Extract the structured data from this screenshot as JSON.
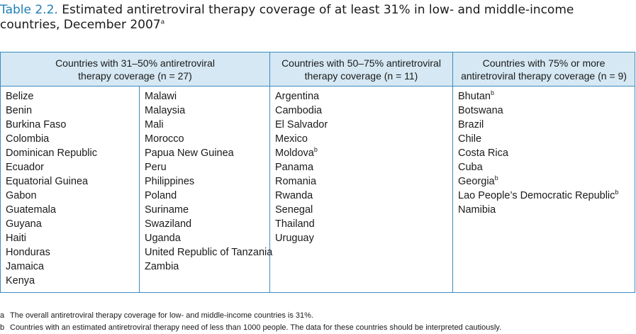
{
  "title": {
    "number": "Table 2.2.",
    "text_line1": " Estimated antiretroviral therapy coverage of at least 31% in low- and middle-income",
    "text_line2": "countries, December 2007",
    "note_mark": "a"
  },
  "headers": [
    {
      "line1": "Countries with 31–50% antiretroviral",
      "line2": "therapy coverage (n = 27)"
    },
    {
      "line1": "Countries with 50–75% antiretroviral",
      "line2": "therapy coverage (n = 11)"
    },
    {
      "line1": "Countries with 75% or more",
      "line2": "antiretroviral therapy coverage (n = 9)"
    }
  ],
  "col1a": [
    "Belize",
    "Benin",
    "Burkina Faso",
    "Colombia",
    "Dominican Republic",
    "Ecuador",
    "Equatorial Guinea",
    "Gabon",
    "Guatemala",
    "Guyana",
    "Haiti",
    "Honduras",
    "Jamaica",
    "Kenya"
  ],
  "col1b": [
    "Malawi",
    "Malaysia",
    "Mali",
    "Morocco",
    "Papua New Guinea",
    "Peru",
    "Philippines",
    "Poland",
    "Suriname",
    "Swaziland",
    "Uganda",
    "United Republic of Tanzania",
    "Zambia"
  ],
  "col2": [
    {
      "name": "Argentina",
      "note": ""
    },
    {
      "name": "Cambodia",
      "note": ""
    },
    {
      "name": "El Salvador",
      "note": ""
    },
    {
      "name": "Mexico",
      "note": ""
    },
    {
      "name": "Moldova",
      "note": "b"
    },
    {
      "name": "Panama",
      "note": ""
    },
    {
      "name": "Romania",
      "note": ""
    },
    {
      "name": "Rwanda",
      "note": ""
    },
    {
      "name": "Senegal",
      "note": ""
    },
    {
      "name": "Thailand",
      "note": ""
    },
    {
      "name": "Uruguay",
      "note": ""
    }
  ],
  "col3": [
    {
      "name": "Bhutan",
      "note": "b"
    },
    {
      "name": "Botswana",
      "note": ""
    },
    {
      "name": "Brazil",
      "note": ""
    },
    {
      "name": "Chile",
      "note": ""
    },
    {
      "name": "Costa Rica",
      "note": ""
    },
    {
      "name": "Cuba",
      "note": ""
    },
    {
      "name": "Georgia",
      "note": "b"
    },
    {
      "name": "Lao People’s Democratic Republic",
      "note": "b"
    },
    {
      "name": "Namibia",
      "note": ""
    }
  ],
  "footnotes": [
    {
      "key": "a",
      "text": "The overall antiretroviral therapy coverage for low- and middle-income countries is 31%."
    },
    {
      "key": "b",
      "text": "Countries with an estimated antiretroviral therapy need of less than 1000 people. The data for these countries should be interpreted cautiously."
    }
  ]
}
